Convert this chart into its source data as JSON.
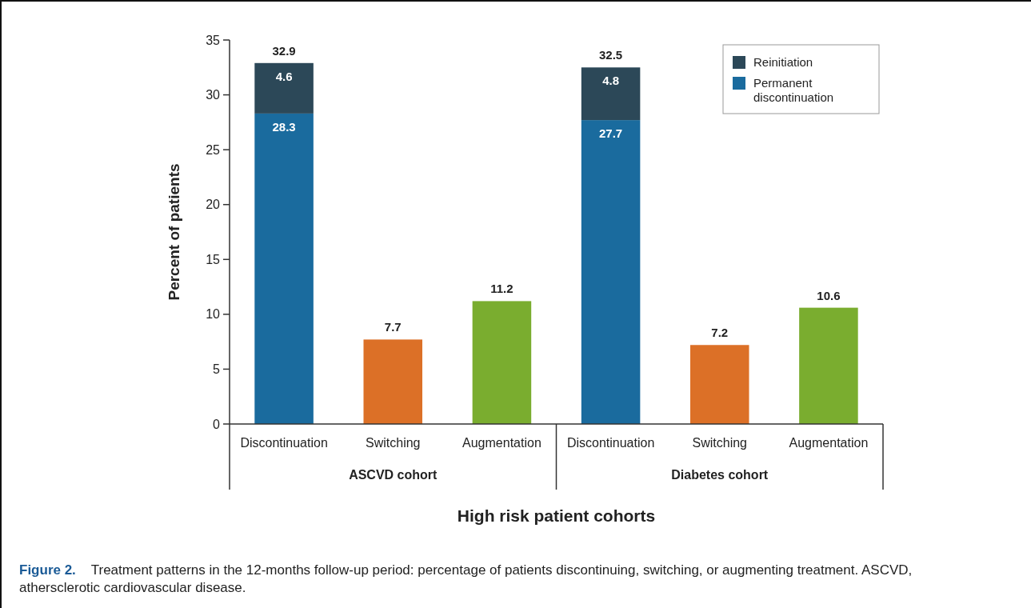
{
  "chart_data": {
    "type": "bar",
    "stacked": true,
    "categories": [
      "Discontinuation",
      "Switching",
      "Augmentation",
      "Discontinuation",
      "Switching",
      "Augmentation"
    ],
    "series": [
      {
        "name": "Permanent discontinuation",
        "color": "#1a6b9e",
        "values": [
          28.3,
          null,
          null,
          27.7,
          null,
          null
        ]
      },
      {
        "name": "Reinitiation",
        "color": "#2c4858",
        "values": [
          4.6,
          null,
          null,
          4.8,
          null,
          null
        ]
      },
      {
        "colors": [
          null,
          "#dc7027",
          "#7aad2f",
          null,
          "#dc7027",
          "#7aad2f"
        ],
        "values": [
          null,
          7.7,
          11.2,
          null,
          7.2,
          10.6
        ]
      }
    ],
    "totals": [
      "32.9",
      null,
      null,
      "32.5",
      null,
      null
    ],
    "data_labels": true,
    "xlabel": "High risk patient cohorts",
    "ylabel": "Percent of patients",
    "ylim": [
      0,
      35
    ],
    "yticks": [
      0,
      5,
      10,
      15,
      20,
      25,
      30,
      35
    ],
    "grid": false,
    "legend": "top right",
    "annotations": [
      "ASCVD cohort",
      "Diabetes cohort",
      "Figure 2.    Treatment patterns in the 12-months follow-up period: percentage of patients discontinuing, switching, or augmenting treatment. ASCVD, athersclerotic cardiovascular disease."
    ]
  }
}
